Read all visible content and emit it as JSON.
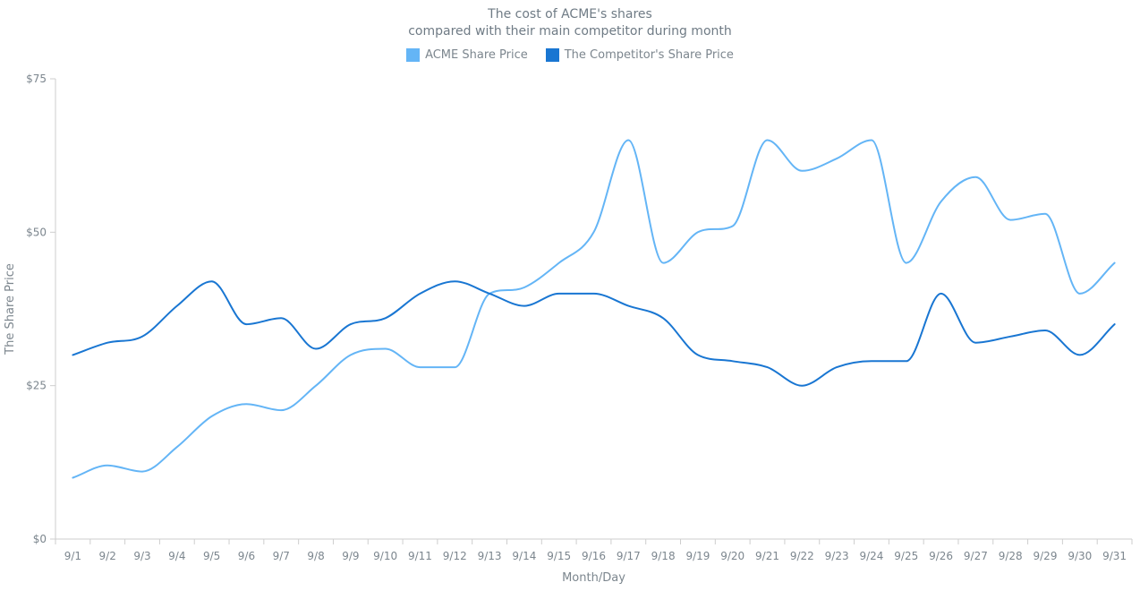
{
  "title": {
    "line1": "The cost of ACME's shares",
    "line2": "compared with their main competitor during month"
  },
  "legend": [
    {
      "label": "ACME Share Price",
      "color": "#64B5F6"
    },
    {
      "label": "The Competitor's Share Price",
      "color": "#1976D2"
    }
  ],
  "chart_data": {
    "type": "line",
    "subtype": "spline",
    "title": "The cost of ACME's shares compared with their main competitor during month",
    "xlabel": "Month/Day",
    "ylabel": "The Share Price",
    "x": [
      "9/1",
      "9/2",
      "9/3",
      "9/4",
      "9/5",
      "9/6",
      "9/7",
      "9/8",
      "9/9",
      "9/10",
      "9/11",
      "9/12",
      "9/13",
      "9/14",
      "9/15",
      "9/16",
      "9/17",
      "9/18",
      "9/19",
      "9/20",
      "9/21",
      "9/22",
      "9/23",
      "9/24",
      "9/25",
      "9/26",
      "9/27",
      "9/28",
      "9/29",
      "9/30",
      "9/31"
    ],
    "series": [
      {
        "name": "ACME Share Price",
        "color": "#64B5F6",
        "values": [
          10,
          12,
          11,
          15,
          20,
          22,
          21,
          25,
          30,
          31,
          28,
          28,
          40,
          41,
          45,
          50,
          65,
          45,
          50,
          51,
          65,
          60,
          62,
          65,
          45,
          55,
          59,
          52,
          53,
          40,
          45
        ]
      },
      {
        "name": "The Competitor's Share Price",
        "color": "#1976D2",
        "values": [
          30,
          32,
          33,
          38,
          42,
          35,
          36,
          31,
          35,
          36,
          40,
          42,
          40,
          38,
          40,
          40,
          38,
          36,
          30,
          29,
          28,
          25,
          28,
          29,
          29,
          40,
          32,
          33,
          34,
          30,
          35
        ]
      }
    ],
    "ylim": [
      0,
      75
    ],
    "yticks": [
      {
        "value": 0,
        "label": "$0"
      },
      {
        "value": 25,
        "label": "$25"
      },
      {
        "value": 50,
        "label": "$50"
      },
      {
        "value": 75,
        "label": "$75"
      }
    ],
    "grid": false,
    "legend_position": "top"
  },
  "colors": {
    "axis": "#CECECE",
    "label_text": "#7C868E",
    "title_text": "#6F7B85"
  }
}
